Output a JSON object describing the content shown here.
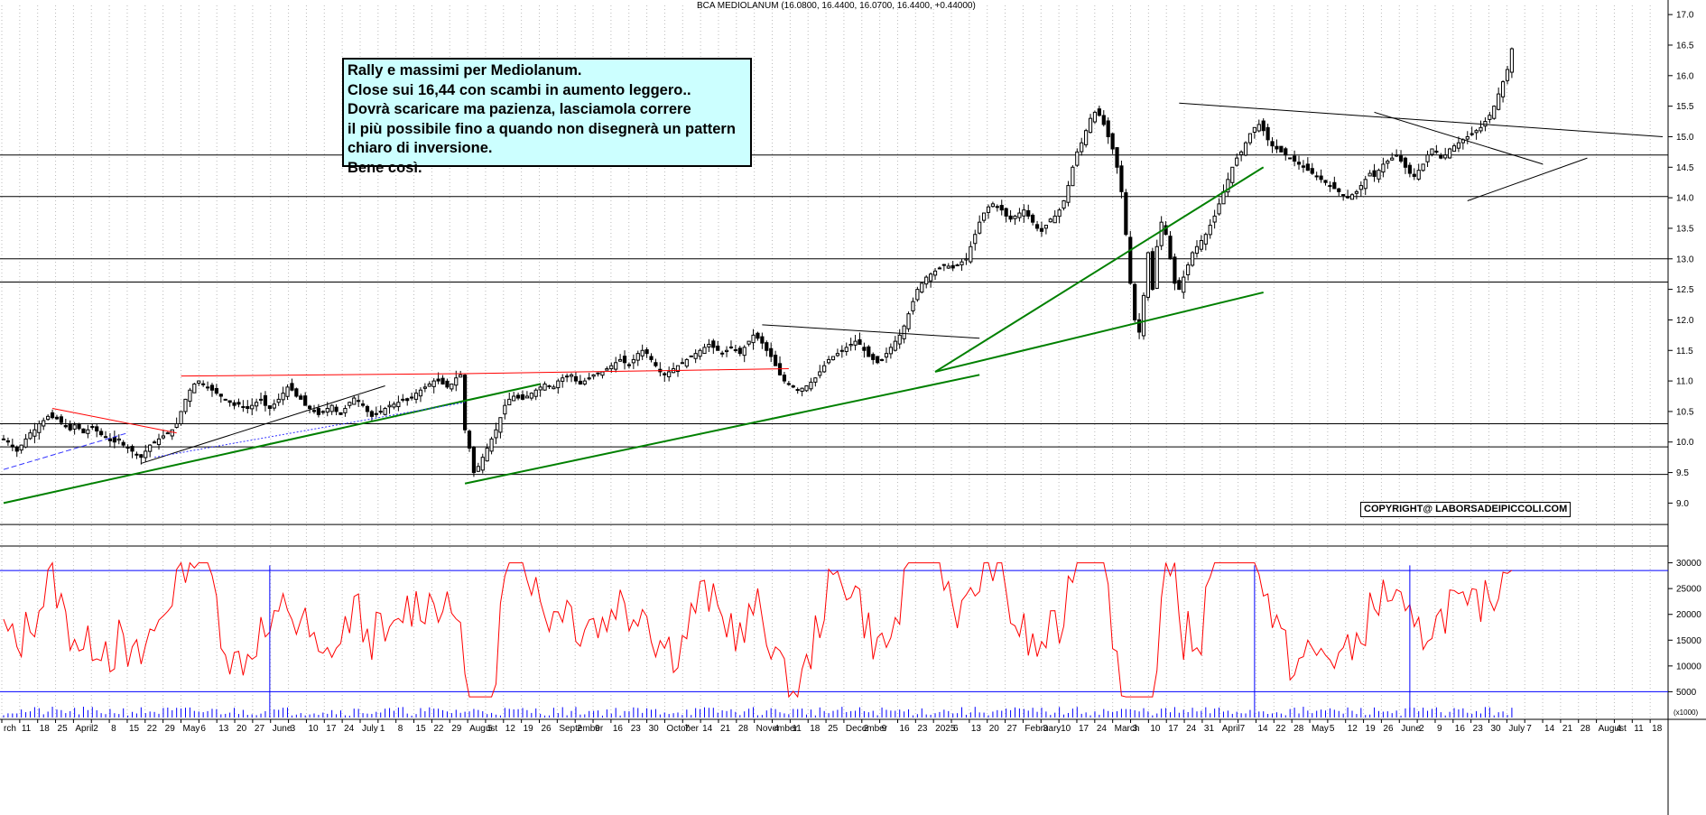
{
  "header": {
    "title": "BCA MEDIOLANUM (16.0800, 16.4400, 16.0700, 16.4400, +0.44000)"
  },
  "annotation": {
    "lines": [
      "Rally e massimi per Mediolanum.",
      "Close sui 16,44 con scambi in aumento leggero..",
      "Dovrà scaricare ma pazienza, lasciamola correre",
      "il più possibile fino a quando non disegnerà un pattern",
      "chiaro di inversione.",
      "Bene così."
    ]
  },
  "copyright": "COPYRIGHT@ LABORSADEIPICCOLI.COM",
  "colors": {
    "background": "#ffffff",
    "candle": "#000000",
    "trend_green": "#008000",
    "trend_red": "#ff0000",
    "horizontal_level": "#000000",
    "oscillator": "#ff0000",
    "oscillator_levels": "#0000ff",
    "note_bg": "#ccffff"
  },
  "chart_data": [
    {
      "type": "candlestick",
      "xlim": [
        0,
        374
      ],
      "ylim": [
        8.4,
        17.15
      ],
      "yaxis_side": "right",
      "y_ticks": [
        9.0,
        9.5,
        10.0,
        10.5,
        11.0,
        11.5,
        12.0,
        12.5,
        13.0,
        13.5,
        14.0,
        14.5,
        15.0,
        15.5,
        16.0,
        16.5,
        17.0
      ],
      "y_tick_labels": [
        "9.0",
        "9.5",
        "10.0",
        "10.5",
        "11.0",
        "11.5",
        "12.0",
        "12.5",
        "13.0",
        "13.5",
        "14.0",
        "14.5",
        "15.0",
        "15.5",
        "16.0",
        "16.5",
        "17.0"
      ],
      "grid": "vertical-dotted",
      "horizontal_levels": [
        8.65,
        9.47,
        9.92,
        10.3,
        12.62,
        13.0,
        14.02,
        14.7
      ],
      "trendlines_green": [
        {
          "x": [
            0,
            121
          ],
          "y": [
            9.0,
            10.95
          ]
        },
        {
          "x": [
            104,
            220
          ],
          "y": [
            9.32,
            11.1
          ]
        },
        {
          "x": [
            210,
            284
          ],
          "y": [
            11.15,
            14.5
          ]
        },
        {
          "x": [
            210,
            284
          ],
          "y": [
            11.15,
            12.45
          ]
        }
      ],
      "trendlines_red": [
        {
          "x": [
            11,
            39
          ],
          "y": [
            10.55,
            10.15
          ]
        },
        {
          "x": [
            40,
            104
          ],
          "y": [
            11.08,
            11.12
          ]
        },
        {
          "x": [
            104,
            177
          ],
          "y": [
            11.12,
            11.2
          ]
        }
      ],
      "trendlines_black": [
        {
          "x": [
            31,
            86
          ],
          "y": [
            9.65,
            10.92
          ]
        },
        {
          "x": [
            171,
            220
          ],
          "y": [
            11.92,
            11.7
          ]
        },
        {
          "x": [
            265,
            374
          ],
          "y": [
            15.55,
            15.0
          ]
        },
        {
          "x": [
            309,
            347
          ],
          "y": [
            15.4,
            14.55
          ]
        },
        {
          "x": [
            330,
            357
          ],
          "y": [
            13.95,
            14.65
          ]
        }
      ],
      "closes": [
        10.05,
        10.0,
        9.92,
        9.85,
        9.95,
        10.05,
        10.15,
        10.2,
        10.3,
        10.35,
        10.42,
        10.4,
        10.38,
        10.32,
        10.25,
        10.2,
        10.28,
        10.22,
        10.15,
        10.2,
        10.25,
        10.18,
        10.12,
        10.08,
        10.02,
        10.0,
        10.05,
        9.95,
        9.9,
        9.85,
        9.8,
        9.75,
        9.85,
        9.95,
        10.0,
        10.05,
        10.1,
        10.15,
        10.2,
        10.3,
        10.5,
        10.7,
        10.85,
        10.95,
        11.0,
        10.95,
        10.9,
        10.85,
        10.8,
        10.75,
        10.7,
        10.65,
        10.6,
        10.62,
        10.58,
        10.55,
        10.6,
        10.65,
        10.7,
        10.6,
        10.55,
        10.62,
        10.7,
        10.8,
        10.9,
        10.85,
        10.75,
        10.7,
        10.6,
        10.55,
        10.5,
        10.45,
        10.5,
        10.55,
        10.6,
        10.5,
        10.45,
        10.55,
        10.65,
        10.72,
        10.68,
        10.6,
        10.5,
        10.42,
        10.45,
        10.5,
        10.55,
        10.6,
        10.62,
        10.65,
        10.7,
        10.68,
        10.72,
        10.8,
        10.85,
        10.9,
        10.95,
        11.0,
        11.0,
        10.95,
        10.9,
        10.95,
        11.05,
        11.1,
        10.2,
        9.9,
        9.5,
        9.6,
        9.75,
        9.9,
        10.05,
        10.2,
        10.4,
        10.6,
        10.7,
        10.75,
        10.72,
        10.7,
        10.75,
        10.8,
        10.85,
        10.9,
        10.95,
        10.92,
        10.9,
        11.0,
        11.05,
        11.08,
        11.1,
        11.0,
        10.95,
        11.0,
        11.05,
        11.1,
        11.12,
        11.15,
        11.2,
        11.25,
        11.3,
        11.35,
        11.3,
        11.25,
        11.35,
        11.45,
        11.5,
        11.45,
        11.35,
        11.25,
        11.15,
        11.1,
        11.15,
        11.2,
        11.25,
        11.3,
        11.35,
        11.4,
        11.45,
        11.5,
        11.55,
        11.6,
        11.55,
        11.5,
        11.45,
        11.5,
        11.55,
        11.5,
        11.45,
        11.55,
        11.65,
        11.75,
        11.7,
        11.62,
        11.5,
        11.4,
        11.25,
        11.1,
        11.0,
        10.95,
        10.9,
        10.85,
        10.88,
        10.92,
        10.98,
        11.05,
        11.15,
        11.25,
        11.35,
        11.4,
        11.45,
        11.5,
        11.55,
        11.6,
        11.65,
        11.6,
        11.5,
        11.4,
        11.35,
        11.3,
        11.35,
        11.45,
        11.55,
        11.65,
        11.75,
        11.9,
        12.1,
        12.3,
        12.5,
        12.6,
        12.7,
        12.75,
        12.8,
        12.85,
        12.9,
        12.88,
        12.85,
        12.9,
        12.95,
        13.0,
        13.2,
        13.4,
        13.6,
        13.75,
        13.85,
        13.9,
        13.85,
        13.8,
        13.7,
        13.65,
        13.7,
        13.75,
        13.8,
        13.7,
        13.6,
        13.5,
        13.45,
        13.55,
        13.65,
        13.7,
        13.8,
        13.95,
        14.2,
        14.5,
        14.75,
        14.9,
        15.1,
        15.3,
        15.4,
        15.35,
        15.2,
        15.0,
        14.8,
        14.5,
        14.1,
        13.4,
        12.6,
        12.0,
        11.8,
        12.4,
        13.1,
        12.5,
        13.2,
        13.6,
        13.4,
        13.0,
        12.6,
        12.5,
        12.7,
        12.9,
        13.1,
        13.2,
        13.3,
        13.4,
        13.55,
        13.7,
        13.9,
        14.1,
        14.3,
        14.5,
        14.65,
        14.75,
        14.9,
        15.05,
        15.15,
        15.2,
        15.1,
        14.95,
        14.85,
        14.8,
        14.75,
        14.7,
        14.65,
        14.6,
        14.55,
        14.5,
        14.45,
        14.4,
        14.35,
        14.3,
        14.25,
        14.2,
        14.15,
        14.1,
        14.05,
        14.0,
        14.05,
        14.1,
        14.2,
        14.3,
        14.4,
        14.35,
        14.45,
        14.55,
        14.6,
        14.65,
        14.7,
        14.6,
        14.5,
        14.4,
        14.35,
        14.45,
        14.55,
        14.7,
        14.8,
        14.75,
        14.65,
        14.7,
        14.8,
        14.85,
        14.9,
        14.95,
        15.0,
        15.05,
        15.1,
        15.15,
        15.25,
        15.35,
        15.5,
        15.7,
        15.9,
        16.1,
        16.44
      ],
      "x_tick_labels": [
        "rch",
        "11",
        "18",
        "25",
        "April",
        "2",
        "8",
        "15",
        "22",
        "29",
        "May",
        "6",
        "13",
        "20",
        "27",
        "June",
        "3",
        "10",
        "17",
        "24",
        "July",
        "1",
        "8",
        "15",
        "22",
        "29",
        "August",
        "5",
        "12",
        "19",
        "26",
        "September",
        "2",
        "9",
        "16",
        "23",
        "30",
        "October",
        "7",
        "14",
        "21",
        "28",
        "November",
        "4",
        "11",
        "18",
        "25",
        "December",
        "2",
        "9",
        "16",
        "23",
        "2025",
        "6",
        "13",
        "20",
        "27",
        "February",
        "3",
        "10",
        "17",
        "24",
        "March",
        "3",
        "10",
        "17",
        "24",
        "31",
        "April",
        "7",
        "14",
        "22",
        "28",
        "May",
        "5",
        "12",
        "19",
        "26",
        "June",
        "2",
        "9",
        "16",
        "23",
        "30",
        "July",
        "7",
        "14",
        "21",
        "28",
        "August",
        "4",
        "11",
        "18"
      ]
    },
    {
      "type": "line",
      "name": "",
      "ylim": [
        0,
        31500
      ],
      "y_ticks": [
        5000,
        10000,
        15000,
        20000,
        25000,
        30000
      ],
      "y_tick_labels": [
        "5000",
        "10000",
        "15000",
        "20000",
        "25000",
        "30000"
      ],
      "levels": [
        5000,
        28500
      ],
      "scale_label": "(x1000)"
    }
  ]
}
